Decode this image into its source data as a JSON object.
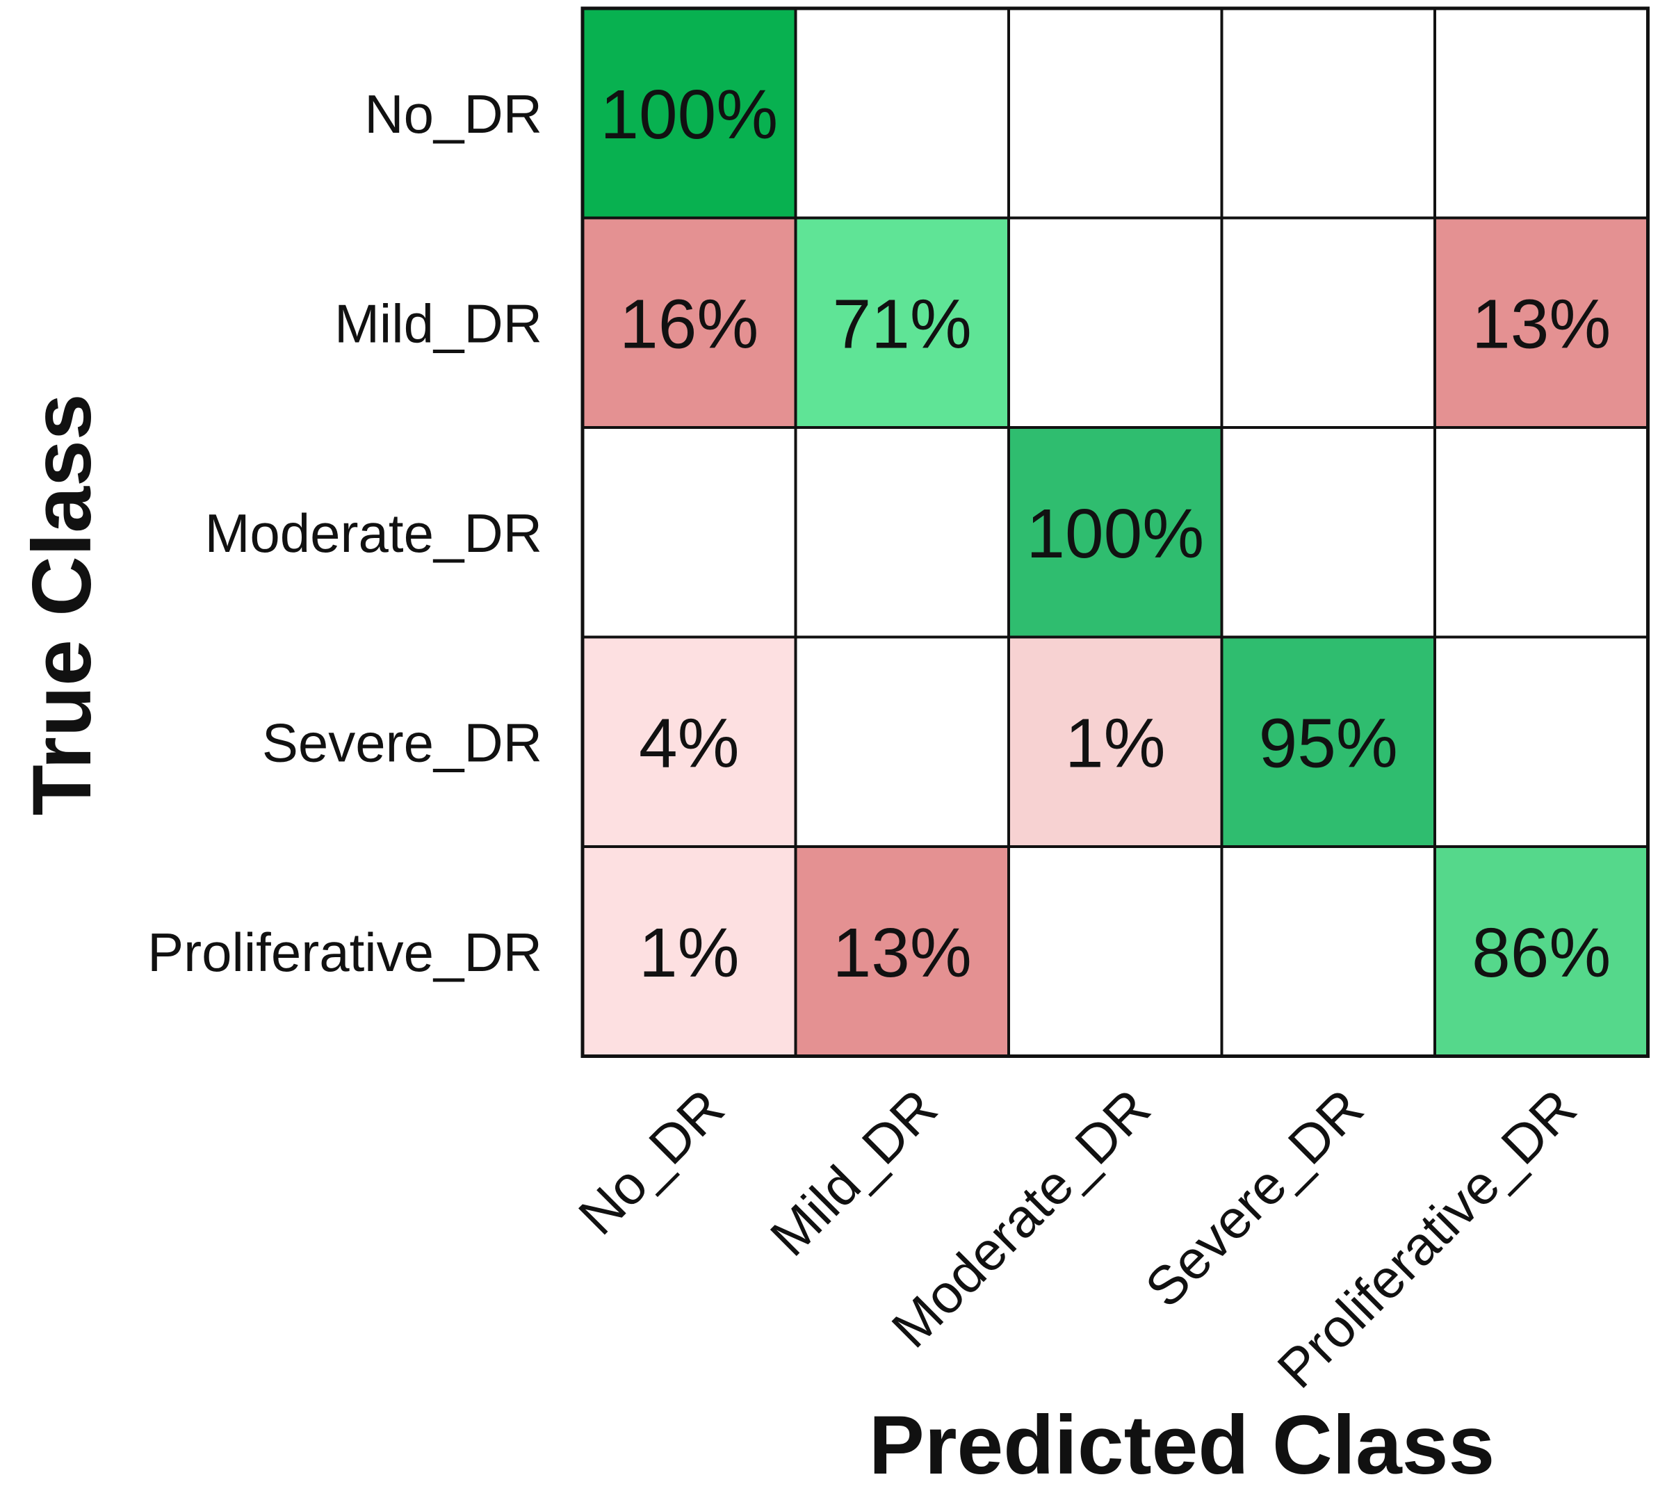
{
  "chart_data": {
    "type": "heatmap",
    "title": "",
    "xlabel": "Predicted Class",
    "ylabel": "True Class",
    "x_categories": [
      "No_DR",
      "Mild_DR",
      "Moderate_DR",
      "Severe_DR",
      "Proliferative_DR"
    ],
    "y_categories": [
      "No_DR",
      "Mild_DR",
      "Moderate_DR",
      "Severe_DR",
      "Proliferative_DR"
    ],
    "values": [
      [
        100,
        null,
        null,
        null,
        null
      ],
      [
        16,
        71,
        null,
        null,
        13
      ],
      [
        null,
        null,
        100,
        null,
        null
      ],
      [
        4,
        null,
        1,
        95,
        null
      ],
      [
        1,
        13,
        null,
        null,
        86
      ]
    ],
    "value_labels": [
      [
        "100%",
        "",
        "",
        "",
        ""
      ],
      [
        "16%",
        "71%",
        "",
        "",
        "13%"
      ],
      [
        "",
        "",
        "100%",
        "",
        ""
      ],
      [
        "4%",
        "",
        "1%",
        "95%",
        ""
      ],
      [
        "1%",
        "13%",
        "",
        "",
        "86%"
      ]
    ],
    "cell_colors": [
      [
        "#08b150",
        "#ffffff",
        "#ffffff",
        "#ffffff",
        "#ffffff"
      ],
      [
        "#e49192",
        "#5fe496",
        "#ffffff",
        "#ffffff",
        "#e49192"
      ],
      [
        "#ffffff",
        "#ffffff",
        "#2fbd6f",
        "#ffffff",
        "#ffffff"
      ],
      [
        "#fde0e1",
        "#ffffff",
        "#f7d2d2",
        "#2fbd6f",
        "#ffffff"
      ],
      [
        "#fde0e1",
        "#e49192",
        "#ffffff",
        "#ffffff",
        "#55d88b"
      ]
    ],
    "grid": true,
    "legend": "none"
  }
}
